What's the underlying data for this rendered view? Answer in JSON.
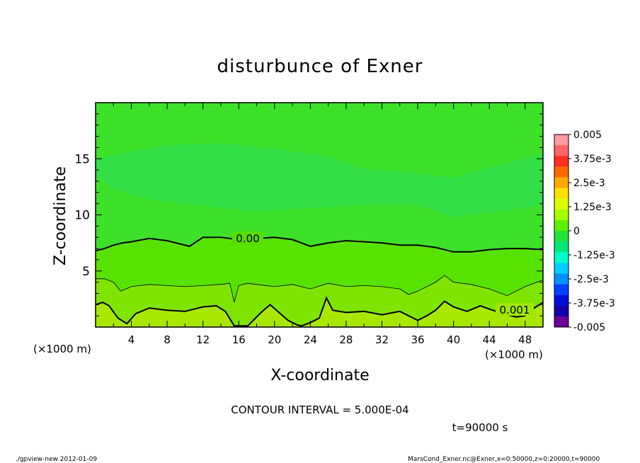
{
  "chart_data": {
    "type": "heatmap",
    "title": "disturbunce of Exner",
    "xlabel": "X-coordinate",
    "ylabel": "Z-coordinate",
    "x_unit_left": "(×1000 m)",
    "x_unit_right": "(×1000 m)",
    "xlim": [
      0,
      50
    ],
    "ylim": [
      0,
      20
    ],
    "x_ticks": [
      4,
      8,
      12,
      16,
      20,
      24,
      28,
      32,
      36,
      40,
      44,
      48
    ],
    "y_ticks": [
      5,
      10,
      15
    ],
    "colorbar": {
      "range": [
        -0.005,
        0.005
      ],
      "tick_labels": [
        "0.005",
        "3.75e-3",
        "2.5e-3",
        "1.25e-3",
        "0",
        "-1.25e-3",
        "-2.5e-3",
        "-3.75e-3",
        "-0.005"
      ],
      "colors": [
        "#ff9aa0",
        "#ff6466",
        "#ff2e22",
        "#ff6a00",
        "#ffaa00",
        "#ffe100",
        "#dcff00",
        "#a8ff00",
        "#5cf000",
        "#22e33a",
        "#00e87c",
        "#00ffcc",
        "#00d0ff",
        "#0092ff",
        "#0040ff",
        "#0010d8",
        "#1400a8",
        "#6a0096"
      ]
    },
    "contour_labels": [
      "0.00",
      "0.001"
    ],
    "contour_levels": [
      0.0,
      0.0005,
      0.001
    ],
    "contour_0": {
      "x": [
        0,
        1,
        2,
        3,
        4,
        6,
        8,
        10,
        10.5,
        12,
        14,
        16,
        18,
        20,
        22,
        24,
        26,
        28,
        30,
        32,
        34,
        36,
        38,
        40,
        42,
        44,
        46,
        48,
        50
      ],
      "z": [
        6.8,
        7.0,
        7.3,
        7.5,
        7.6,
        7.9,
        7.7,
        7.3,
        7.2,
        8.0,
        8.0,
        7.8,
        7.9,
        8.0,
        7.8,
        7.2,
        7.5,
        7.7,
        7.6,
        7.5,
        7.3,
        7.3,
        7.1,
        6.7,
        6.7,
        6.9,
        7.0,
        7.0,
        6.9
      ]
    },
    "contour_0005": {
      "x": [
        0,
        1,
        2,
        2.8,
        4,
        6,
        8,
        10,
        12,
        14,
        15,
        15.5,
        16,
        17,
        18,
        20,
        22,
        24,
        26,
        28,
        30,
        32,
        34,
        35,
        36,
        38,
        39,
        40,
        42,
        44,
        46,
        48,
        50
      ],
      "z": [
        4.3,
        4.3,
        4.0,
        3.2,
        3.6,
        3.8,
        3.7,
        3.6,
        3.7,
        3.8,
        3.9,
        2.2,
        3.7,
        3.9,
        3.8,
        3.6,
        3.8,
        3.4,
        3.9,
        3.6,
        3.7,
        3.6,
        3.4,
        2.9,
        3.2,
        4.0,
        4.6,
        4.0,
        3.8,
        3.4,
        2.8,
        3.6,
        4.2
      ]
    },
    "contour_001": {
      "x": [
        0,
        0.8,
        1.5,
        2.5,
        3.5,
        4.5,
        6,
        8,
        10,
        12,
        13.5,
        14.5,
        15.5,
        17,
        18.5,
        19.5,
        20.5,
        21.5,
        22.5,
        23,
        24,
        25,
        25.8,
        26.5,
        28,
        30,
        32,
        34,
        36,
        37,
        38,
        39,
        40,
        41.5,
        43,
        44,
        45.5,
        47,
        48,
        49,
        50
      ],
      "z": [
        2.0,
        2.2,
        1.9,
        0.8,
        0.3,
        1.2,
        1.7,
        1.5,
        1.4,
        1.8,
        1.9,
        1.4,
        0.1,
        0.1,
        1.3,
        2.0,
        1.3,
        0.6,
        0.2,
        0.1,
        0.4,
        0.8,
        2.6,
        1.5,
        1.3,
        1.4,
        1.1,
        1.4,
        0.6,
        1.0,
        1.5,
        2.3,
        1.8,
        1.4,
        1.9,
        1.6,
        1.2,
        0.9,
        1.0,
        1.7,
        2.2
      ]
    },
    "contour_interval_text": "CONTOUR INTERVAL = 5.000E-04",
    "time_label": "t=90000 s"
  },
  "footer": {
    "left": "./gpview-new  2012-01-09",
    "right": "MarsCond_Exner.nc@Exner,x=0:50000,z=0:20000,t=90000"
  }
}
